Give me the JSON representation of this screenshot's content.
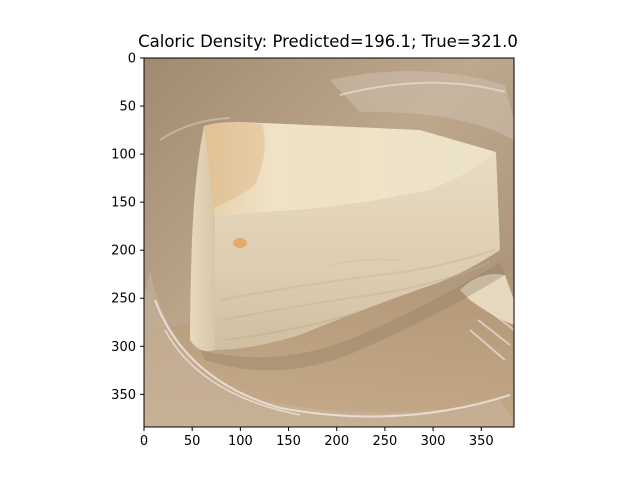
{
  "figure": {
    "title": "Caloric Density: Predicted=196.1; True=321.0"
  },
  "image": {
    "subject": "cheesecake-slice-in-plastic-container",
    "image_width": 384,
    "image_height": 384
  },
  "axes": {
    "x_ticks": [
      0,
      50,
      100,
      150,
      200,
      250,
      300,
      350
    ],
    "y_ticks": [
      0,
      50,
      100,
      150,
      200,
      250,
      300,
      350
    ],
    "xlim": [
      0,
      384
    ],
    "ylim": [
      384,
      0
    ]
  },
  "colors": {
    "background": "#b39a7d",
    "cake_top": "#e9dcc0",
    "cake_side": "#e2d3ba",
    "crust_highlight": "#d9a870"
  }
}
